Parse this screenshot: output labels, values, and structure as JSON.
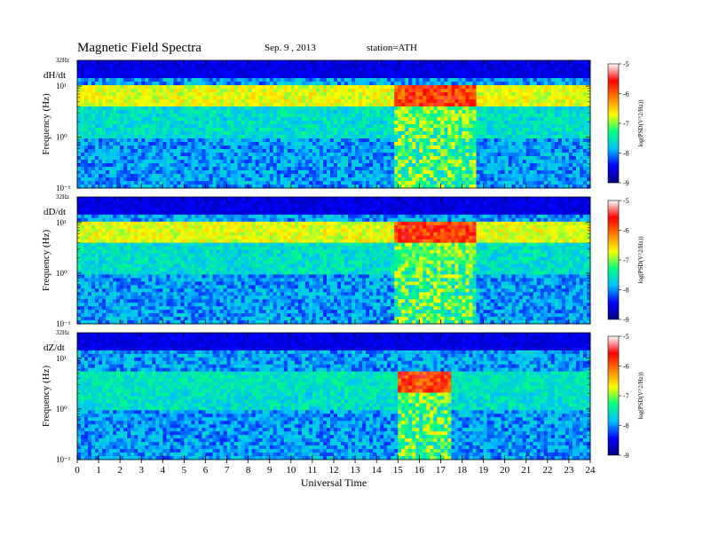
{
  "header": {
    "title": "Magnetic  Field  Spectra",
    "date": "Sep. 9  , 2013",
    "station": "station=ATH"
  },
  "chart_data": {
    "type": "heatmap",
    "xlabel": "Universal Time",
    "x_ticks": [
      "0",
      "1",
      "2",
      "3",
      "4",
      "5",
      "6",
      "7",
      "8",
      "9",
      "10",
      "11",
      "12",
      "13",
      "14",
      "15",
      "16",
      "17",
      "18",
      "19",
      "20",
      "21",
      "22",
      "23",
      "24"
    ],
    "xlim": [
      0,
      24
    ],
    "y_scale": "log",
    "ylabel": "Frequency (Hz)",
    "y_top_label": "32Hz",
    "y_ticks": [
      "10¹",
      "10⁰",
      "10⁻¹"
    ],
    "colorbar": {
      "label": "log(PSD(V^2/Hz))",
      "ticks": [
        "-5",
        "-6",
        "-7",
        "-8",
        "-9"
      ],
      "range": [
        -9,
        -5
      ],
      "colors": [
        "#000080",
        "#0000ff",
        "#00bfff",
        "#00ff80",
        "#ffff00",
        "#ff8000",
        "#ff0000",
        "#ffffff"
      ]
    },
    "panels": [
      {
        "component": "dH/dt",
        "event_start_ut": 14.9,
        "event_end_ut": 18.6,
        "band_hz": [
          4,
          8
        ]
      },
      {
        "component": "dD/dt",
        "event_start_ut": 14.9,
        "event_end_ut": 18.6,
        "band_hz": [
          4,
          8
        ]
      },
      {
        "component": "dZ/dt",
        "event_start_ut": 15.0,
        "event_end_ut": 17.5,
        "band_hz": [
          2,
          4
        ]
      }
    ]
  }
}
